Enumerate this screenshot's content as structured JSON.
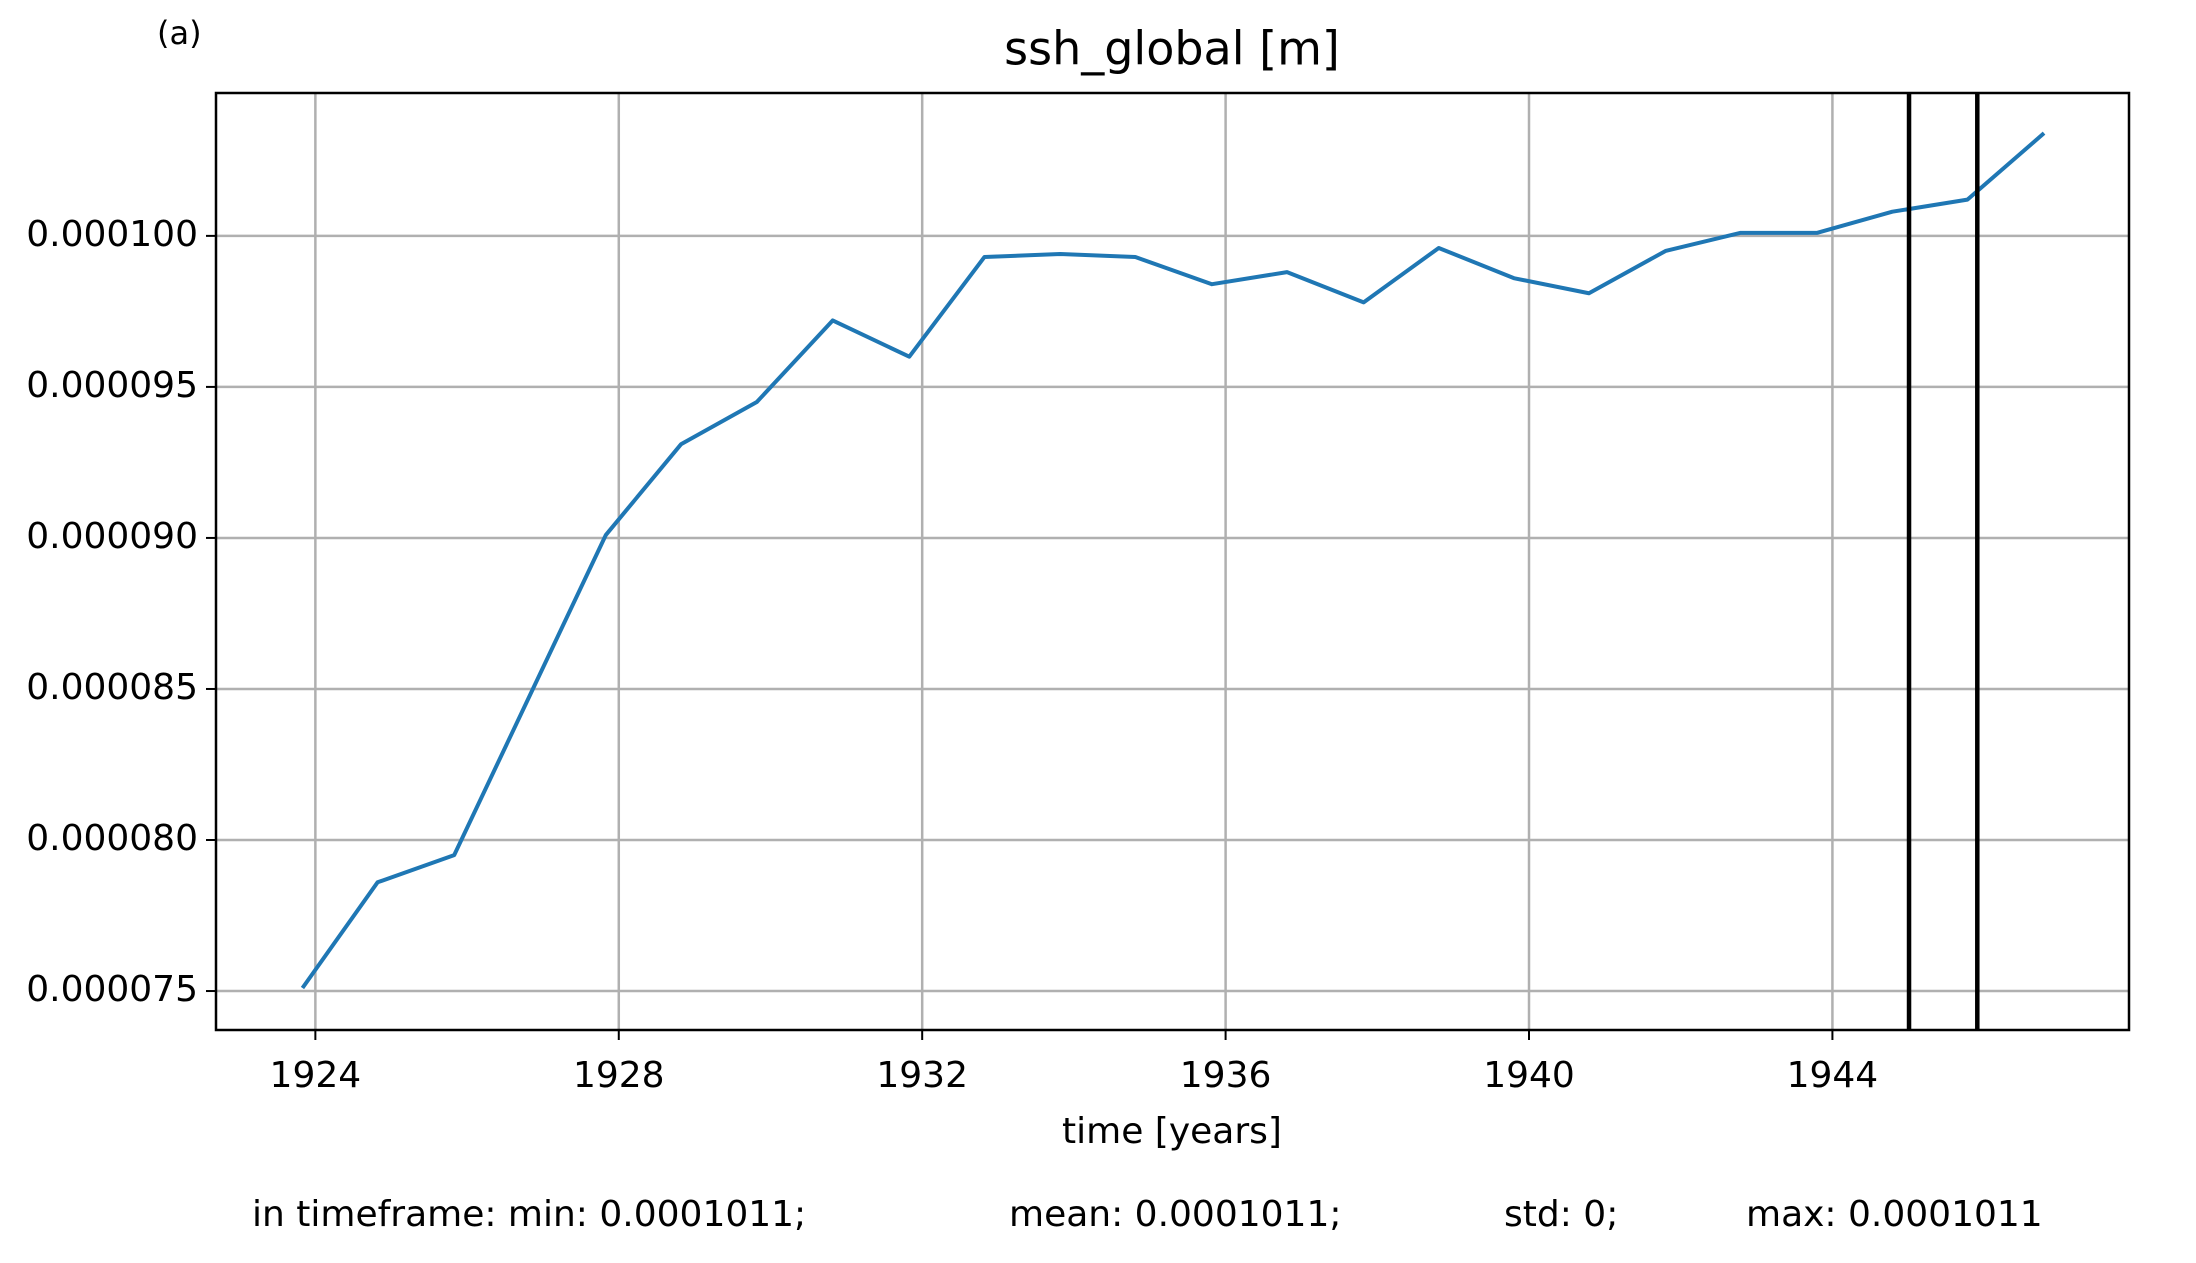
{
  "chart_data": {
    "type": "line",
    "label": "(a)",
    "title": "ssh_global [m]",
    "x_label": "time [years]",
    "x": [
      1923.83,
      1924.82,
      1925.83,
      1926.83,
      1927.83,
      1928.82,
      1929.82,
      1930.82,
      1931.83,
      1932.82,
      1933.82,
      1934.81,
      1935.82,
      1936.81,
      1937.82,
      1938.81,
      1939.8,
      1940.79,
      1941.8,
      1942.79,
      1943.8,
      1944.79,
      1945.78,
      1946.79
    ],
    "series": [
      {
        "name": "ssh_global",
        "color": "#1f77b4",
        "values": [
          7.51e-05,
          7.86e-05,
          7.95e-05,
          8.48e-05,
          9.01e-05,
          9.31e-05,
          9.45e-05,
          9.72e-05,
          9.6e-05,
          9.93e-05,
          9.94e-05,
          9.93e-05,
          9.84e-05,
          9.88e-05,
          9.78e-05,
          9.96e-05,
          9.86e-05,
          9.81e-05,
          9.95e-05,
          0.0001001,
          0.0001001,
          0.0001008,
          0.0001012,
          0.0001034
        ]
      }
    ],
    "vlines": {
      "color": "#000000",
      "x": [
        1945.01,
        1945.91
      ]
    },
    "xlim": [
      1922.69,
      1947.91
    ],
    "ylim": [
      7.371e-05,
      0.00010473
    ],
    "xticks": [
      1924,
      1928,
      1932,
      1936,
      1940,
      1944
    ],
    "yticks": [
      {
        "value": 7.5e-05,
        "label": "0.000075"
      },
      {
        "value": 8e-05,
        "label": "0.000080"
      },
      {
        "value": 8.5e-05,
        "label": "0.000085"
      },
      {
        "value": 9e-05,
        "label": "0.000090"
      },
      {
        "value": 9.5e-05,
        "label": "0.000095"
      },
      {
        "value": 0.0001,
        "label": "0.000100"
      }
    ],
    "grid": true,
    "stats": [
      "in timeframe: min: 0.0001011;",
      "mean: 0.0001011;",
      "std: 0;",
      "max: 0.0001011"
    ]
  }
}
